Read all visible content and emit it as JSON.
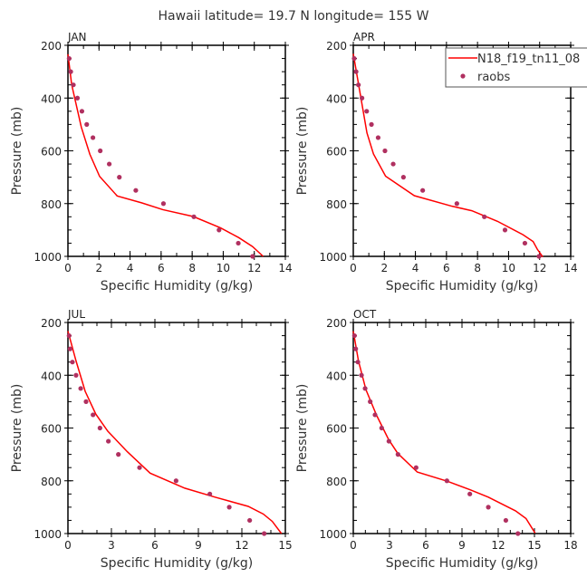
{
  "title": "Hawaii  latitude= 19.7 N longitude= 155 W",
  "legend": {
    "model_label": "N18_f19_tn11_08",
    "obs_label": "raobs",
    "model_color": "#ff0000",
    "obs_color": "#b03060"
  },
  "chart_data": [
    {
      "type": "line",
      "panel": "JAN",
      "xlabel": "Specific Humidity (g/kg)",
      "ylabel": "Pressure (mb)",
      "xlim": [
        0,
        14
      ],
      "xticks": [
        0,
        2,
        4,
        6,
        8,
        10,
        12,
        14
      ],
      "ylim": [
        200,
        1000
      ],
      "yticks": [
        200,
        400,
        600,
        800,
        1000
      ],
      "series": [
        {
          "name": "N18_f19_tn11_08",
          "type": "line",
          "x": [
            0,
            0.24,
            0.86,
            1.41,
            2.04,
            3.17,
            4.74,
            6.11,
            8.07,
            9.83,
            11.0,
            11.89,
            12.57
          ],
          "y": [
            234,
            349,
            510,
            613,
            697,
            771,
            797,
            823,
            849,
            892,
            929,
            963,
            1000
          ]
        },
        {
          "name": "raobs",
          "type": "scatter",
          "x": [
            0.08,
            0.18,
            0.35,
            0.61,
            0.9,
            1.21,
            1.61,
            2.08,
            2.66,
            3.31,
            4.37,
            6.15,
            8.11,
            9.73,
            10.97,
            11.89
          ],
          "y": [
            250,
            300,
            350,
            400,
            450,
            500,
            550,
            600,
            650,
            700,
            750,
            800,
            850,
            900,
            950,
            1000
          ]
        }
      ]
    },
    {
      "type": "line",
      "panel": "APR",
      "xlabel": "Specific Humidity (g/kg)",
      "ylabel": "Pressure (mb)",
      "xlim": [
        0,
        14
      ],
      "xticks": [
        0,
        2,
        4,
        6,
        8,
        10,
        12,
        14
      ],
      "ylim": [
        200,
        1000
      ],
      "yticks": [
        200,
        400,
        600,
        800,
        1000
      ],
      "series": [
        {
          "name": "N18_f19_tn11_08",
          "type": "line",
          "x": [
            0,
            0.88,
            1.3,
            2.08,
            3.93,
            6.36,
            7.63,
            9.28,
            10.93,
            11.58,
            11.85,
            12.2
          ],
          "y": [
            232,
            532,
            612,
            696,
            770,
            810,
            827,
            867,
            918,
            944,
            973,
            1002
          ]
        },
        {
          "name": "raobs",
          "type": "scatter",
          "x": [
            0.06,
            0.18,
            0.33,
            0.56,
            0.86,
            1.17,
            1.6,
            2.04,
            2.57,
            3.23,
            4.47,
            6.67,
            8.44,
            9.77,
            11.05,
            11.96
          ],
          "y": [
            250,
            300,
            350,
            400,
            450,
            500,
            550,
            600,
            650,
            700,
            750,
            800,
            850,
            900,
            950,
            1000
          ]
        }
      ]
    },
    {
      "type": "line",
      "panel": "JUL",
      "xlabel": "Specific Humidity (g/kg)",
      "ylabel": "Pressure (mb)",
      "xlim": [
        0,
        15
      ],
      "xticks": [
        0,
        3,
        6,
        9,
        12,
        15
      ],
      "ylim": [
        200,
        1000
      ],
      "yticks": [
        200,
        400,
        600,
        800,
        1000
      ],
      "series": [
        {
          "name": "N18_f19_tn11_08",
          "type": "line",
          "x": [
            0,
            0.56,
            1.19,
            1.92,
            2.75,
            4.1,
            5.67,
            8.06,
            10.15,
            12.44,
            13.48,
            14.1,
            14.73
          ],
          "y": [
            233,
            346,
            461,
            547,
            612,
            690,
            771,
            828,
            862,
            897,
            926,
            954,
            1000
          ]
        },
        {
          "name": "raobs",
          "type": "scatter",
          "x": [
            0.08,
            0.15,
            0.31,
            0.56,
            0.88,
            1.25,
            1.73,
            2.21,
            2.79,
            3.48,
            4.94,
            7.46,
            9.79,
            11.13,
            12.54,
            13.54
          ],
          "y": [
            250,
            300,
            350,
            400,
            450,
            500,
            550,
            600,
            650,
            700,
            750,
            800,
            850,
            900,
            950,
            1000
          ]
        }
      ]
    },
    {
      "type": "line",
      "panel": "OCT",
      "xlabel": "Specific Humidity (g/kg)",
      "ylabel": "Pressure (mb)",
      "xlim": [
        0,
        18
      ],
      "xticks": [
        0,
        3,
        6,
        9,
        12,
        15,
        18
      ],
      "ylim": [
        200,
        1000
      ],
      "yticks": [
        200,
        400,
        600,
        800,
        1000
      ],
      "series": [
        {
          "name": "N18_f19_tn11_08",
          "type": "line",
          "x": [
            0,
            0.43,
            1.05,
            1.93,
            2.93,
            3.68,
            5.3,
            7.8,
            9.68,
            11.18,
            13.43,
            14.3,
            15.05
          ],
          "y": [
            233,
            346,
            455,
            552,
            644,
            696,
            767,
            802,
            834,
            862,
            914,
            943,
            998
          ]
        },
        {
          "name": "raobs",
          "type": "scatter",
          "x": [
            0.1,
            0.2,
            0.38,
            0.68,
            0.98,
            1.4,
            1.8,
            2.35,
            2.95,
            3.7,
            5.2,
            7.75,
            9.65,
            11.18,
            12.63,
            13.63
          ],
          "y": [
            250,
            300,
            350,
            400,
            450,
            500,
            550,
            600,
            650,
            700,
            750,
            800,
            850,
            900,
            950,
            1000
          ]
        }
      ]
    }
  ]
}
